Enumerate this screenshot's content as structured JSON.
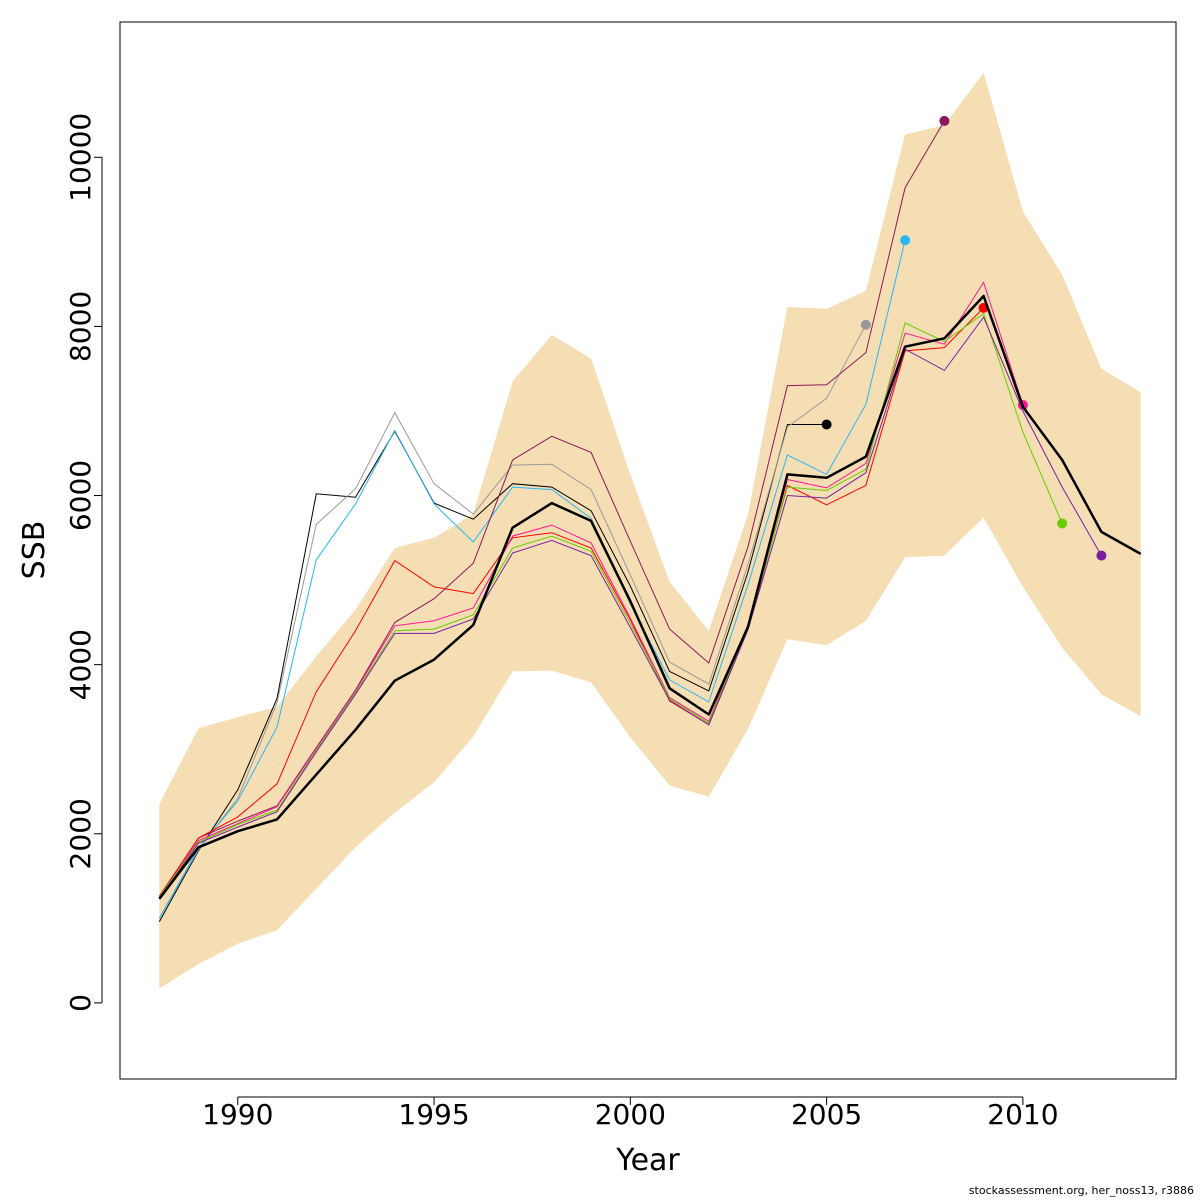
{
  "chart_data": {
    "type": "line",
    "xlabel": "Year",
    "ylabel": "SSB",
    "xlim": [
      1987.0,
      2013.9
    ],
    "ylim": [
      -900,
      11600
    ],
    "x_ticks": [
      1990,
      1995,
      2000,
      2005,
      2010
    ],
    "y_ticks": [
      0,
      2000,
      4000,
      6000,
      8000,
      10000
    ],
    "grid": false,
    "legend": "none",
    "band": {
      "color": "#F5DEB3",
      "x": [
        1988,
        1989,
        1990,
        1991,
        1992,
        1993,
        1994,
        1995,
        1996,
        1997,
        1998,
        1999,
        2000,
        2001,
        2002,
        2003,
        2004,
        2005,
        2006,
        2007,
        2008,
        2009,
        2010,
        2011,
        2012,
        2013
      ],
      "upper": [
        2350,
        3250,
        3380,
        3500,
        4100,
        4650,
        5380,
        5500,
        5780,
        7350,
        7900,
        7620,
        6250,
        4980,
        4400,
        5780,
        8230,
        8210,
        8420,
        10270,
        10380,
        11000,
        9360,
        8610,
        7500,
        7220
      ],
      "lower": [
        170,
        460,
        700,
        860,
        1350,
        1840,
        2250,
        2610,
        3150,
        3920,
        3930,
        3790,
        3140,
        2570,
        2440,
        3240,
        4300,
        4230,
        4520,
        5270,
        5290,
        5740,
        4920,
        4200,
        3650,
        3390
      ]
    },
    "main_series": {
      "color": "#000000",
      "x": [
        1988,
        1989,
        1990,
        1991,
        1992,
        1993,
        1994,
        1995,
        1996,
        1997,
        1998,
        1999,
        2000,
        2001,
        2002,
        2003,
        2004,
        2005,
        2006,
        2007,
        2008,
        2009,
        2010,
        2011,
        2012,
        2013
      ],
      "values": [
        1230,
        1840,
        2030,
        2170,
        2700,
        3230,
        3810,
        4060,
        4470,
        5620,
        5910,
        5700,
        4750,
        3720,
        3410,
        4450,
        6250,
        6210,
        6460,
        7760,
        7860,
        8360,
        7050,
        6420,
        5570,
        5310
      ]
    },
    "retro_series": [
      {
        "color": "#000000",
        "end_point": true,
        "x": [
          1988,
          1989,
          1990,
          1991,
          1992,
          1993,
          1994,
          1995,
          1996,
          1997,
          1998,
          1999,
          2000,
          2001,
          2002,
          2003,
          2004,
          2005
        ],
        "values": [
          960,
          1800,
          2520,
          3600,
          6020,
          5980,
          6760,
          5910,
          5720,
          6140,
          6100,
          5820,
          4930,
          3920,
          3690,
          5100,
          6840,
          6840
        ]
      },
      {
        "color": "#999999",
        "end_point": true,
        "x": [
          1988,
          1989,
          1990,
          1991,
          1992,
          1993,
          1994,
          1995,
          1996,
          1997,
          1998,
          1999,
          2000,
          2001,
          2002,
          2003,
          2004,
          2005,
          2006
        ],
        "values": [
          1000,
          1810,
          2420,
          3550,
          5660,
          6080,
          6980,
          6140,
          5780,
          6360,
          6370,
          6070,
          5060,
          4030,
          3770,
          5190,
          6810,
          7150,
          8020
        ]
      },
      {
        "color": "#29B6F6",
        "end_point": true,
        "x": [
          1988,
          1989,
          1990,
          1991,
          1992,
          1993,
          1994,
          1995,
          1996,
          1997,
          1998,
          1999,
          2000,
          2001,
          2002,
          2003,
          2004,
          2005,
          2006,
          2007
        ],
        "values": [
          1000,
          1830,
          2390,
          3260,
          5240,
          5900,
          6770,
          5900,
          5450,
          6100,
          6070,
          5730,
          4720,
          3820,
          3560,
          4950,
          6480,
          6250,
          7080,
          9020
        ]
      },
      {
        "color": "#8B1A5C",
        "end_point": true,
        "x": [
          1988,
          1989,
          1990,
          1991,
          1992,
          1993,
          1994,
          1995,
          1996,
          1997,
          1998,
          1999,
          2000,
          2001,
          2002,
          2003,
          2004,
          2005,
          2006,
          2007,
          2008
        ],
        "values": [
          1260,
          1950,
          2150,
          2330,
          3020,
          3700,
          4500,
          4780,
          5200,
          6420,
          6700,
          6510,
          5460,
          4420,
          4020,
          5400,
          7300,
          7310,
          7690,
          9640,
          10430
        ]
      },
      {
        "color": "#FF0000",
        "end_point": true,
        "x": [
          1988,
          1989,
          1990,
          1991,
          1992,
          1993,
          1994,
          1995,
          1996,
          1997,
          1998,
          1999,
          2000,
          2001,
          2002,
          2003,
          2004,
          2005,
          2006,
          2007,
          2008,
          2009
        ],
        "values": [
          1260,
          1950,
          2200,
          2590,
          3680,
          4400,
          5230,
          4920,
          4840,
          5500,
          5560,
          5380,
          4530,
          3570,
          3290,
          4420,
          6120,
          5890,
          6120,
          7710,
          7750,
          8220
        ]
      },
      {
        "color": "#FF1493",
        "end_point": true,
        "x": [
          1988,
          1989,
          1990,
          1991,
          1992,
          1993,
          1994,
          1995,
          1996,
          1997,
          1998,
          1999,
          2000,
          2001,
          2002,
          2003,
          2004,
          2005,
          2006,
          2007,
          2008,
          2009,
          2010
        ],
        "values": [
          1240,
          1920,
          2120,
          2320,
          3010,
          3690,
          4460,
          4520,
          4670,
          5520,
          5650,
          5440,
          4550,
          3610,
          3330,
          4480,
          6190,
          6090,
          6380,
          7920,
          7790,
          8520,
          7070
        ]
      },
      {
        "color": "#66CC00",
        "end_point": true,
        "x": [
          1988,
          1989,
          1990,
          1991,
          1992,
          1993,
          1994,
          1995,
          1996,
          1997,
          1998,
          1999,
          2000,
          2001,
          2002,
          2003,
          2004,
          2005,
          2006,
          2007,
          2008,
          2009,
          2010,
          2011
        ],
        "values": [
          1250,
          1900,
          2110,
          2280,
          2990,
          3670,
          4400,
          4420,
          4590,
          5380,
          5520,
          5340,
          4490,
          3600,
          3310,
          4450,
          6100,
          6060,
          6310,
          8040,
          7820,
          8150,
          6750,
          5670
        ]
      },
      {
        "color": "#7A1FA2",
        "end_point": true,
        "x": [
          1988,
          1989,
          1990,
          1991,
          1992,
          1993,
          1994,
          1995,
          1996,
          1997,
          1998,
          1999,
          2000,
          2001,
          2002,
          2003,
          2004,
          2005,
          2006,
          2007,
          2008,
          2009,
          2010,
          2011,
          2012
        ],
        "values": [
          1230,
          1890,
          2080,
          2260,
          2970,
          3650,
          4370,
          4370,
          4540,
          5320,
          5470,
          5290,
          4440,
          3580,
          3290,
          4420,
          6000,
          5970,
          6270,
          7730,
          7480,
          8110,
          7000,
          6100,
          5290
        ]
      }
    ]
  },
  "footer": {
    "credit": "stockassessment.org, her_noss13, r3886"
  }
}
